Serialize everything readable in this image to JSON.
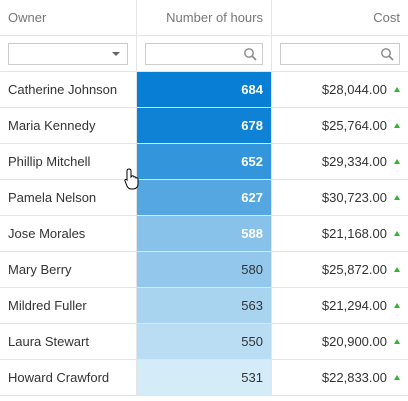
{
  "table": {
    "columns": [
      "Owner",
      "Number of hours",
      "Cost"
    ],
    "rows": [
      [
        "Catherine Johnson",
        684,
        "$28,044.00"
      ],
      [
        "Maria Kennedy",
        678,
        "$25,764.00"
      ],
      [
        "Phillip Mitchell",
        652,
        "$29,334.00"
      ],
      [
        "Pamela Nelson",
        627,
        "$30,723.00"
      ],
      [
        "Jose Morales",
        588,
        "$21,168.00"
      ],
      [
        "Mary Berry",
        580,
        "$25,872.00"
      ],
      [
        "Mildred Fuller",
        563,
        "$21,294.00"
      ],
      [
        "Laura Stewart",
        550,
        "$20,900.00"
      ],
      [
        "Howard Crawford",
        531,
        "$22,833.00"
      ]
    ]
  }
}
